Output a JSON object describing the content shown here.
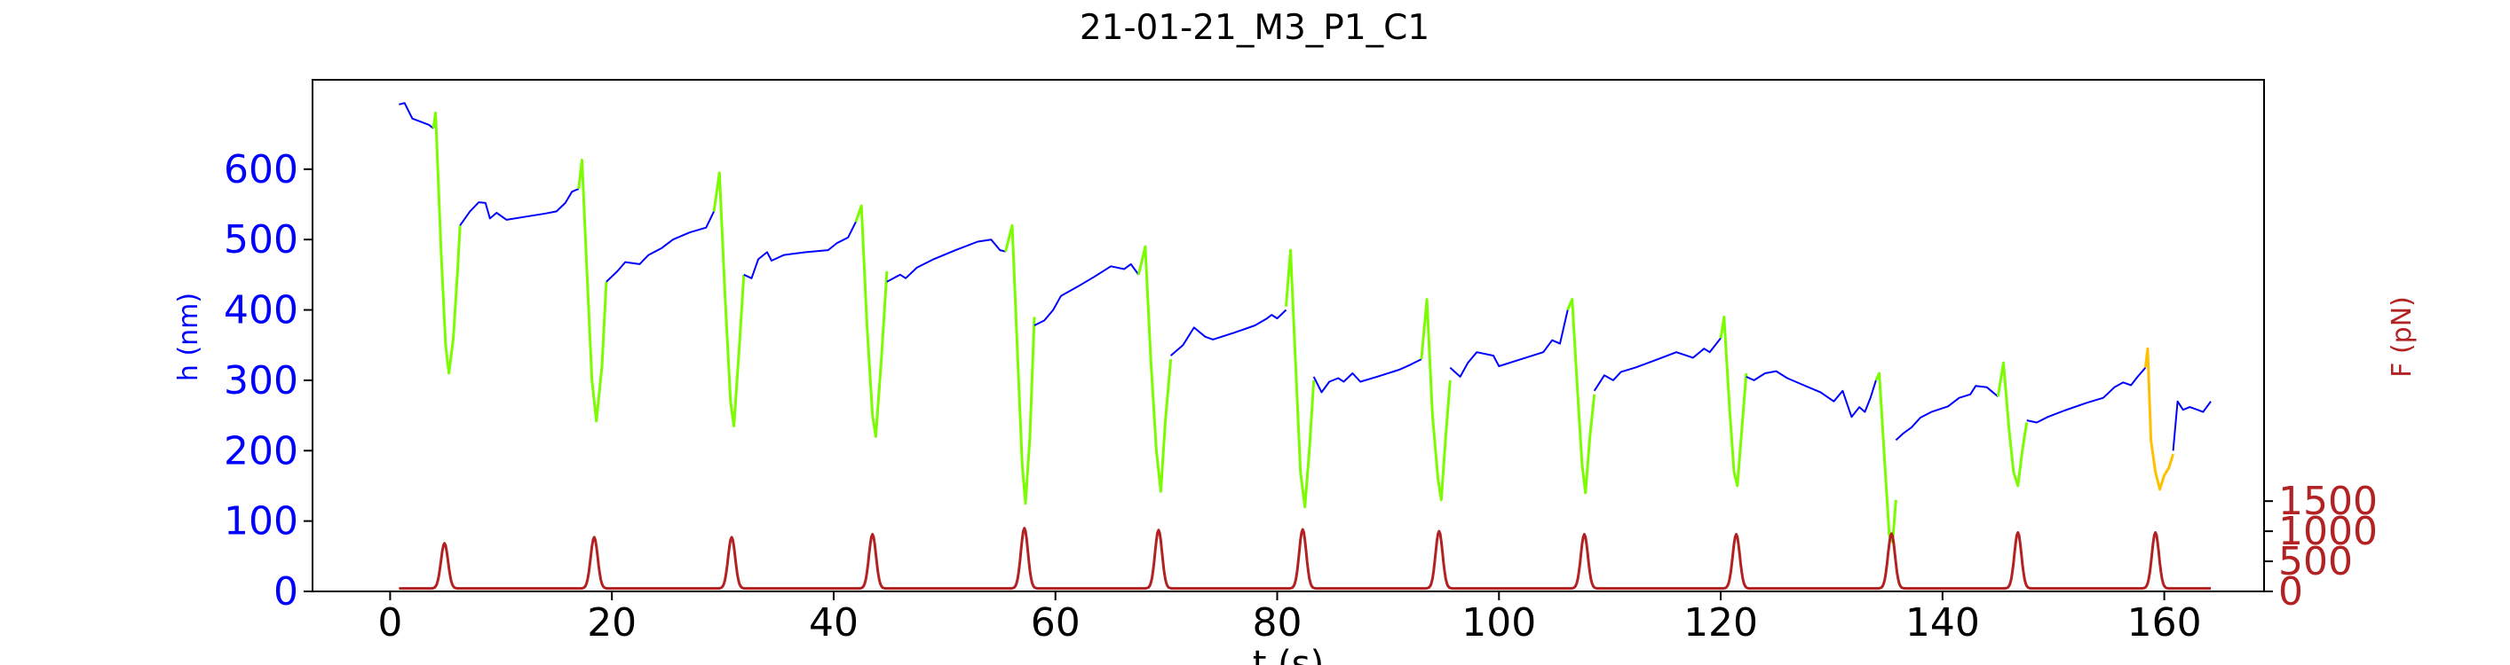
{
  "chart_data": {
    "type": "line",
    "title": "21-01-21_M3_P1_C1",
    "xlabel": "t (s)",
    "ylabel_left": "h (nm)",
    "ylabel_right": "F (pN)",
    "xlim": [
      -7,
      169
    ],
    "ylim_left": [
      0,
      727
    ],
    "ylim_right": [
      0,
      8500
    ],
    "x_ticks": [
      0,
      20,
      40,
      60,
      80,
      100,
      120,
      140,
      160
    ],
    "y_ticks_left": [
      0,
      100,
      200,
      300,
      400,
      500,
      600
    ],
    "y_ticks_right": [
      0,
      500,
      1000,
      1500
    ],
    "grid": false,
    "colors": {
      "height_rest": "#0000ff",
      "height_compression": "#7cfc00",
      "height_last_compression": "#ffc000",
      "force": "#b22222",
      "left_axis_text": "#0000ff",
      "right_axis_text": "#b22222"
    },
    "series": [
      {
        "role": "h-rest",
        "values": [
          [
            0.8,
            692
          ],
          [
            1.3,
            694
          ],
          [
            2.0,
            672
          ],
          [
            3.5,
            663
          ],
          [
            3.9,
            658
          ]
        ]
      },
      {
        "role": "h-compression",
        "values": [
          [
            3.9,
            658
          ],
          [
            4.1,
            680
          ],
          [
            4.6,
            480
          ],
          [
            5.0,
            350
          ],
          [
            5.3,
            310
          ],
          [
            5.7,
            360
          ],
          [
            6.1,
            460
          ],
          [
            6.3,
            520
          ]
        ]
      },
      {
        "role": "h-rest",
        "values": [
          [
            6.3,
            520
          ],
          [
            7.2,
            540
          ],
          [
            8.0,
            553
          ],
          [
            8.6,
            552
          ],
          [
            9.0,
            530
          ],
          [
            9.6,
            538
          ],
          [
            10.5,
            528
          ],
          [
            12,
            532
          ],
          [
            14,
            537
          ],
          [
            15,
            540
          ],
          [
            15.8,
            552
          ],
          [
            16.4,
            568
          ],
          [
            17.0,
            572
          ]
        ]
      },
      {
        "role": "h-compression",
        "values": [
          [
            17.0,
            572
          ],
          [
            17.3,
            613
          ],
          [
            17.7,
            470
          ],
          [
            18.2,
            300
          ],
          [
            18.6,
            242
          ],
          [
            19.1,
            320
          ],
          [
            19.5,
            440
          ]
        ]
      },
      {
        "role": "h-rest",
        "values": [
          [
            19.5,
            440
          ],
          [
            20.5,
            455
          ],
          [
            21.2,
            468
          ],
          [
            22.5,
            465
          ],
          [
            23.3,
            478
          ],
          [
            24.5,
            488
          ],
          [
            25.5,
            500
          ],
          [
            27.0,
            510
          ],
          [
            28.5,
            517
          ],
          [
            29.2,
            540
          ]
        ]
      },
      {
        "role": "h-compression",
        "values": [
          [
            29.2,
            540
          ],
          [
            29.7,
            595
          ],
          [
            30.2,
            420
          ],
          [
            30.7,
            270
          ],
          [
            31.0,
            235
          ],
          [
            31.5,
            350
          ],
          [
            31.9,
            450
          ]
        ]
      },
      {
        "role": "h-rest",
        "values": [
          [
            31.9,
            450
          ],
          [
            32.6,
            445
          ],
          [
            33.2,
            472
          ],
          [
            34.0,
            482
          ],
          [
            34.4,
            470
          ],
          [
            35.5,
            478
          ],
          [
            37.5,
            482
          ],
          [
            39.5,
            485
          ],
          [
            40.3,
            495
          ],
          [
            41.3,
            503
          ],
          [
            42.0,
            525
          ]
        ]
      },
      {
        "role": "h-compression",
        "values": [
          [
            42.0,
            525
          ],
          [
            42.5,
            548
          ],
          [
            43.0,
            380
          ],
          [
            43.5,
            250
          ],
          [
            43.8,
            220
          ],
          [
            44.3,
            330
          ],
          [
            44.8,
            455
          ]
        ]
      },
      {
        "role": "h-rest",
        "values": [
          [
            44.8,
            440
          ],
          [
            46.0,
            450
          ],
          [
            46.5,
            445
          ],
          [
            47.5,
            460
          ],
          [
            49,
            472
          ],
          [
            51,
            485
          ],
          [
            53,
            497
          ],
          [
            54.2,
            500
          ],
          [
            55.0,
            485
          ],
          [
            55.5,
            483
          ]
        ]
      },
      {
        "role": "h-compression",
        "values": [
          [
            55.5,
            483
          ],
          [
            56.1,
            520
          ],
          [
            56.6,
            330
          ],
          [
            57.0,
            180
          ],
          [
            57.3,
            125
          ],
          [
            57.7,
            220
          ],
          [
            58.1,
            390
          ]
        ]
      },
      {
        "role": "h-rest",
        "values": [
          [
            58.1,
            378
          ],
          [
            59.0,
            385
          ],
          [
            59.8,
            400
          ],
          [
            60.5,
            420
          ],
          [
            62,
            433
          ],
          [
            63.5,
            447
          ],
          [
            65.0,
            462
          ],
          [
            66.2,
            458
          ],
          [
            66.8,
            465
          ],
          [
            67.5,
            450
          ]
        ]
      },
      {
        "role": "h-compression",
        "values": [
          [
            67.5,
            450
          ],
          [
            68.1,
            490
          ],
          [
            68.6,
            330
          ],
          [
            69.1,
            200
          ],
          [
            69.5,
            142
          ],
          [
            69.9,
            240
          ],
          [
            70.4,
            330
          ]
        ]
      },
      {
        "role": "h-rest",
        "values": [
          [
            70.4,
            335
          ],
          [
            71.5,
            350
          ],
          [
            72.5,
            375
          ],
          [
            73.5,
            362
          ],
          [
            74.2,
            358
          ],
          [
            76,
            367
          ],
          [
            78,
            378
          ],
          [
            79.0,
            387
          ],
          [
            79.5,
            393
          ],
          [
            80.0,
            388
          ],
          [
            80.8,
            400
          ]
        ]
      },
      {
        "role": "h-compression",
        "values": [
          [
            80.8,
            405
          ],
          [
            81.2,
            485
          ],
          [
            81.7,
            310
          ],
          [
            82.1,
            170
          ],
          [
            82.5,
            120
          ],
          [
            82.9,
            200
          ],
          [
            83.3,
            300
          ]
        ]
      },
      {
        "role": "h-rest",
        "values": [
          [
            83.3,
            305
          ],
          [
            84.0,
            283
          ],
          [
            84.7,
            298
          ],
          [
            85.5,
            303
          ],
          [
            86.0,
            298
          ],
          [
            86.8,
            310
          ],
          [
            87.5,
            298
          ],
          [
            89,
            305
          ],
          [
            91,
            315
          ],
          [
            92.0,
            322
          ],
          [
            93.0,
            330
          ]
        ]
      },
      {
        "role": "h-compression",
        "values": [
          [
            93.0,
            330
          ],
          [
            93.5,
            415
          ],
          [
            94.0,
            250
          ],
          [
            94.5,
            160
          ],
          [
            94.8,
            130
          ],
          [
            95.2,
            220
          ],
          [
            95.6,
            300
          ]
        ]
      },
      {
        "role": "h-rest",
        "values": [
          [
            95.6,
            318
          ],
          [
            96.5,
            305
          ],
          [
            97.2,
            325
          ],
          [
            98.0,
            340
          ],
          [
            99.5,
            335
          ],
          [
            100.0,
            320
          ],
          [
            102,
            330
          ],
          [
            104,
            340
          ],
          [
            104.8,
            357
          ],
          [
            105.5,
            352
          ],
          [
            106.2,
            400
          ]
        ]
      },
      {
        "role": "h-compression",
        "values": [
          [
            106.2,
            400
          ],
          [
            106.6,
            415
          ],
          [
            107.1,
            280
          ],
          [
            107.5,
            180
          ],
          [
            107.8,
            140
          ],
          [
            108.2,
            220
          ],
          [
            108.6,
            280
          ]
        ]
      },
      {
        "role": "h-rest",
        "values": [
          [
            108.6,
            285
          ],
          [
            109.5,
            307
          ],
          [
            110.3,
            300
          ],
          [
            111.0,
            312
          ],
          [
            112.3,
            318
          ],
          [
            114,
            328
          ],
          [
            116,
            340
          ],
          [
            117.5,
            332
          ],
          [
            118.5,
            345
          ],
          [
            119.0,
            340
          ],
          [
            120.0,
            360
          ]
        ]
      },
      {
        "role": "h-compression",
        "values": [
          [
            120.0,
            360
          ],
          [
            120.3,
            390
          ],
          [
            120.8,
            260
          ],
          [
            121.2,
            170
          ],
          [
            121.5,
            150
          ],
          [
            121.9,
            230
          ],
          [
            122.3,
            310
          ]
        ]
      },
      {
        "role": "h-rest",
        "values": [
          [
            122.3,
            305
          ],
          [
            123.0,
            300
          ],
          [
            124,
            310
          ],
          [
            125,
            313
          ],
          [
            126,
            303
          ],
          [
            127.5,
            293
          ],
          [
            129,
            283
          ],
          [
            130.2,
            270
          ],
          [
            131.0,
            285
          ],
          [
            131.8,
            248
          ],
          [
            132.5,
            262
          ],
          [
            133.0,
            255
          ],
          [
            133.5,
            275
          ],
          [
            134.0,
            300
          ]
        ]
      },
      {
        "role": "h-compression",
        "values": [
          [
            134.0,
            300
          ],
          [
            134.3,
            310
          ],
          [
            134.8,
            180
          ],
          [
            135.2,
            80
          ],
          [
            135.5,
            70
          ],
          [
            135.8,
            130
          ]
        ]
      },
      {
        "role": "h-rest",
        "values": [
          [
            135.8,
            215
          ],
          [
            136.5,
            225
          ],
          [
            137.2,
            233
          ],
          [
            138.0,
            247
          ],
          [
            139,
            255
          ],
          [
            140.5,
            263
          ],
          [
            141.5,
            275
          ],
          [
            142.5,
            280
          ],
          [
            143.0,
            292
          ],
          [
            144.0,
            290
          ],
          [
            145.0,
            277
          ]
        ]
      },
      {
        "role": "h-compression",
        "values": [
          [
            145.0,
            277
          ],
          [
            145.5,
            325
          ],
          [
            146.0,
            230
          ],
          [
            146.4,
            170
          ],
          [
            146.8,
            150
          ],
          [
            147.2,
            200
          ],
          [
            147.6,
            240
          ]
        ]
      },
      {
        "role": "h-rest",
        "values": [
          [
            147.6,
            243
          ],
          [
            148.5,
            240
          ],
          [
            149.5,
            248
          ],
          [
            151,
            257
          ],
          [
            153,
            268
          ],
          [
            154.5,
            275
          ],
          [
            155.5,
            290
          ],
          [
            156.3,
            297
          ],
          [
            157.0,
            293
          ],
          [
            157.6,
            305
          ],
          [
            158.3,
            318
          ]
        ]
      },
      {
        "role": "h-last-compression",
        "values": [
          [
            158.3,
            318
          ],
          [
            158.5,
            345
          ],
          [
            158.8,
            215
          ],
          [
            159.2,
            170
          ],
          [
            159.6,
            145
          ],
          [
            160.0,
            165
          ],
          [
            160.4,
            175
          ],
          [
            160.8,
            195
          ]
        ]
      },
      {
        "role": "h-rest",
        "values": [
          [
            160.8,
            200
          ],
          [
            161.2,
            270
          ],
          [
            161.7,
            258
          ],
          [
            162.3,
            262
          ],
          [
            163.0,
            258
          ],
          [
            163.5,
            255
          ],
          [
            164.2,
            270
          ]
        ]
      }
    ],
    "force": {
      "baseline": 50,
      "peaks": [
        {
          "t": 4.9,
          "F": 800
        },
        {
          "t": 18.4,
          "F": 900
        },
        {
          "t": 30.8,
          "F": 900
        },
        {
          "t": 43.5,
          "F": 950
        },
        {
          "t": 57.2,
          "F": 1050
        },
        {
          "t": 69.3,
          "F": 1020
        },
        {
          "t": 82.3,
          "F": 1030
        },
        {
          "t": 94.6,
          "F": 1000
        },
        {
          "t": 107.7,
          "F": 950
        },
        {
          "t": 121.4,
          "F": 950
        },
        {
          "t": 135.4,
          "F": 960
        },
        {
          "t": 146.8,
          "F": 980
        },
        {
          "t": 159.2,
          "F": 980
        }
      ],
      "t_start": 0.8,
      "t_end": 164.2
    }
  }
}
